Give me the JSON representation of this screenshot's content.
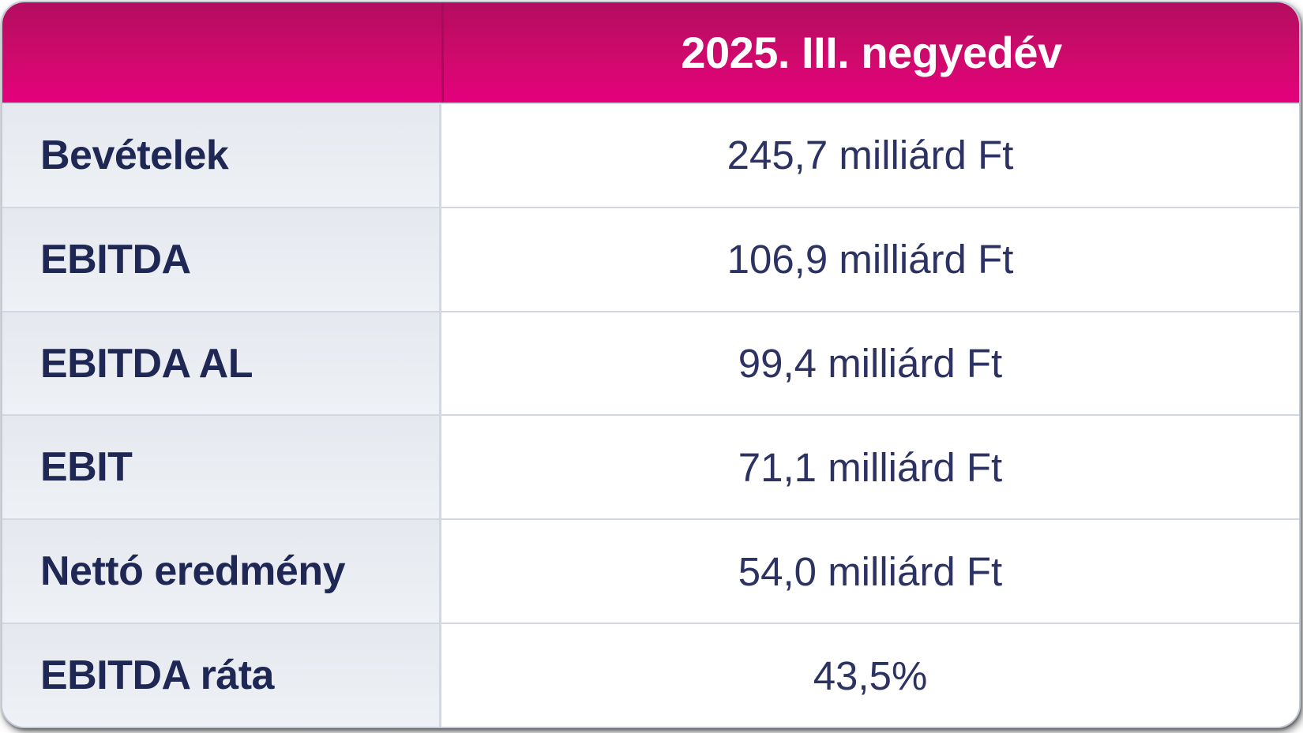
{
  "card": {
    "header": {
      "period_label": "2025. III. negyedév"
    },
    "rows": [
      {
        "label": "Bevételek",
        "value": "245,7 milliárd Ft"
      },
      {
        "label": "EBITDA",
        "value": "106,9 milliárd Ft"
      },
      {
        "label": "EBITDA AL",
        "value": "99,4 milliárd Ft"
      },
      {
        "label": "EBIT",
        "value": "71,1 milliárd Ft"
      },
      {
        "label": "Nettó eredmény",
        "value": "54,0 milliárd Ft"
      },
      {
        "label": "EBITDA ráta",
        "value": "43,5%"
      }
    ]
  },
  "colors": {
    "brand_magenta": "#e20074",
    "header_grad_top": "#b30c5f",
    "header_grad_mid": "#cf0a6c",
    "header_grad_bottom": "#e4007d",
    "header_divider": "#a30d5a",
    "header_text": "#ffffff",
    "label_cell_bg_top": "#e5e9ef",
    "label_cell_bg_bottom": "#eef1f5",
    "value_cell_bg": "#ffffff",
    "label_text": "#1f2754",
    "value_text": "#2c3363",
    "grid_border": "#d2d7e0",
    "outer_border": "#c3c9d5"
  },
  "chart_data": {
    "type": "table",
    "title": "2025. III. negyedév",
    "categories": [
      "Bevételek",
      "EBITDA",
      "EBITDA AL",
      "EBIT",
      "Nettó eredmény",
      "EBITDA ráta"
    ],
    "values": [
      245.7,
      106.9,
      99.4,
      71.1,
      54.0,
      43.5
    ],
    "units": [
      "milliárd Ft",
      "milliárd Ft",
      "milliárd Ft",
      "milliárd Ft",
      "milliárd Ft",
      "%"
    ],
    "legend_position": "none",
    "grid": true
  }
}
